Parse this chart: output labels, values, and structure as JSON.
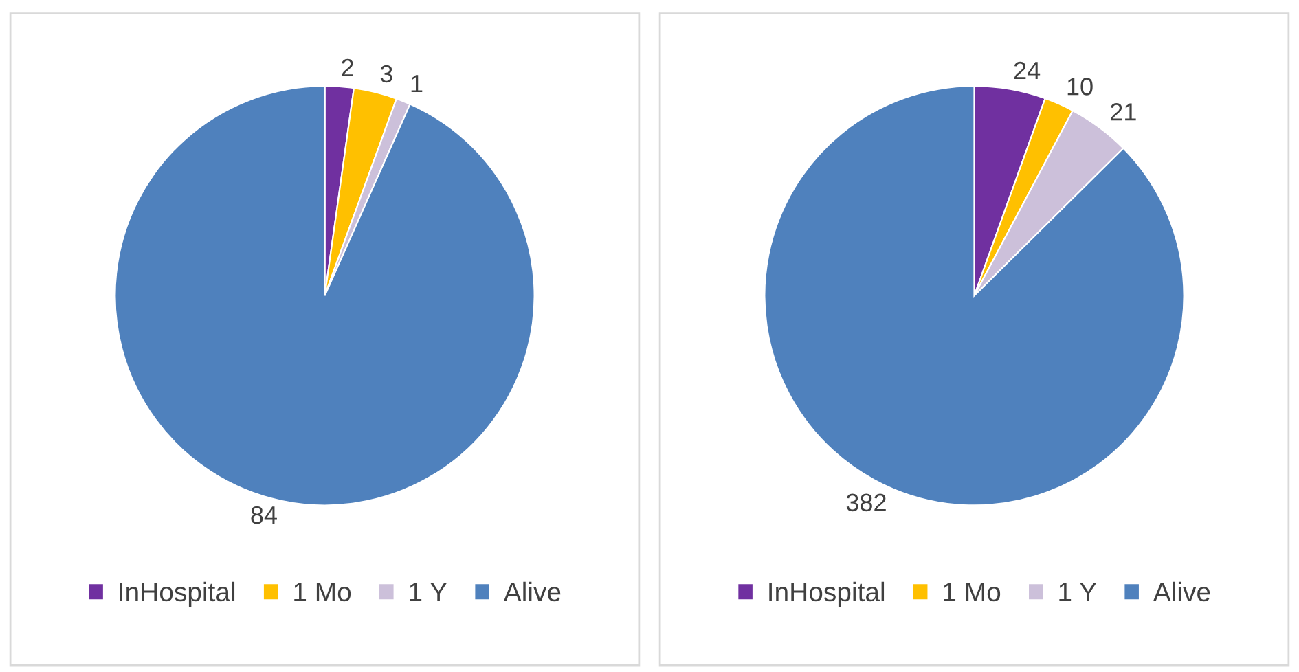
{
  "chart_data": [
    {
      "type": "pie",
      "categories": [
        "InHospital",
        "1 Mo",
        "1 Y",
        "Alive"
      ],
      "values": [
        2,
        3,
        1,
        84
      ],
      "colors": [
        "#7030a0",
        "#ffc000",
        "#ccc0da",
        "#4f81bd"
      ],
      "data_labels": true,
      "legend": "bottom"
    },
    {
      "type": "pie",
      "categories": [
        "InHospital",
        "1 Mo",
        "1 Y",
        "Alive"
      ],
      "values": [
        24,
        10,
        21,
        382
      ],
      "colors": [
        "#7030a0",
        "#ffc000",
        "#ccc0da",
        "#4f81bd"
      ],
      "data_labels": true,
      "legend": "bottom"
    }
  ]
}
